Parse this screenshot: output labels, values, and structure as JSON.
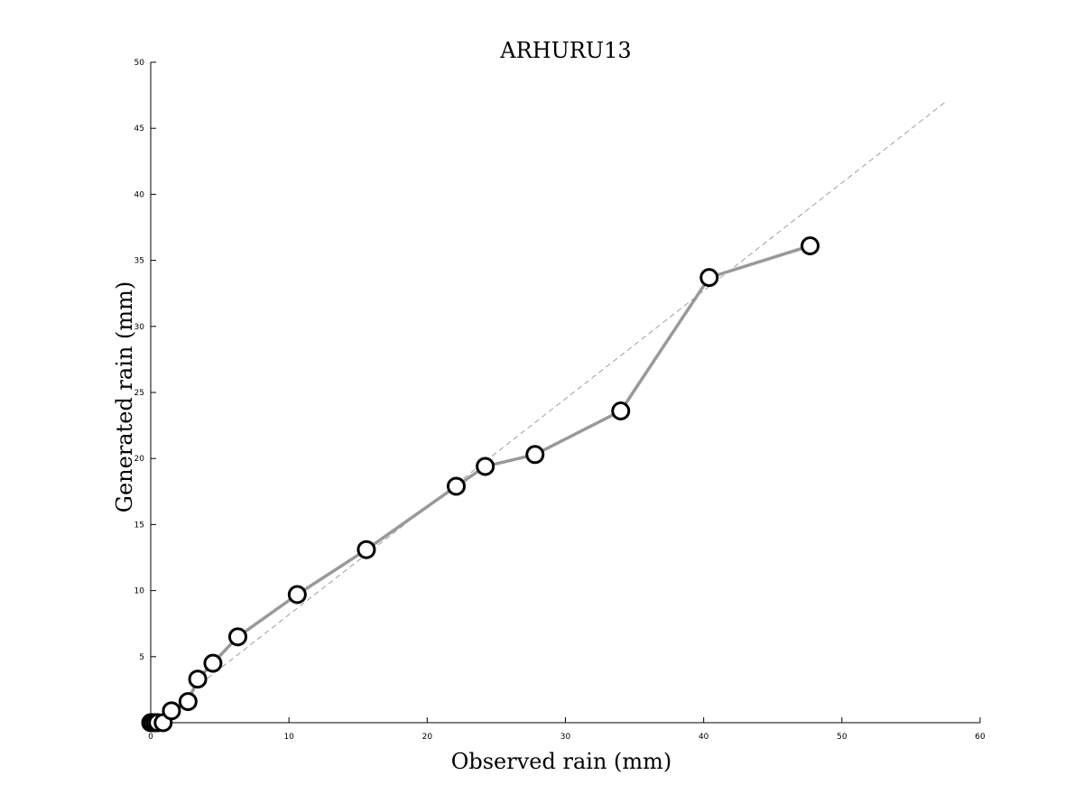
{
  "chart_data": {
    "type": "line",
    "title": "ARHURU13",
    "xlabel": "Observed rain (mm)",
    "ylabel": "Generated rain (mm)",
    "xlim": [
      0,
      60
    ],
    "ylim": [
      0,
      50
    ],
    "xticks": [
      0,
      10,
      20,
      30,
      40,
      50,
      60
    ],
    "yticks": [
      5,
      10,
      15,
      20,
      25,
      30,
      35,
      40,
      45,
      50
    ],
    "grid": false,
    "legend": "none",
    "series": [
      {
        "style": "solid-gray-line-with-open-circles",
        "color": "#999999",
        "marker_color": "#000000",
        "x": [
          0.0,
          0.1,
          0.3,
          0.5,
          0.9,
          1.5,
          2.7,
          3.4,
          4.5,
          6.3,
          10.6,
          15.6,
          22.1,
          24.2,
          27.8,
          34.0,
          40.4,
          47.7
        ],
        "y": [
          0.0,
          0.0,
          0.0,
          0.0,
          0.0,
          0.9,
          1.6,
          3.3,
          4.5,
          6.5,
          9.7,
          13.1,
          17.9,
          19.4,
          20.3,
          23.6,
          33.7,
          36.1
        ]
      },
      {
        "style": "dashed-reference-line",
        "color": "#888888",
        "x": [
          0,
          57.5
        ],
        "y": [
          0,
          47
        ]
      }
    ]
  }
}
